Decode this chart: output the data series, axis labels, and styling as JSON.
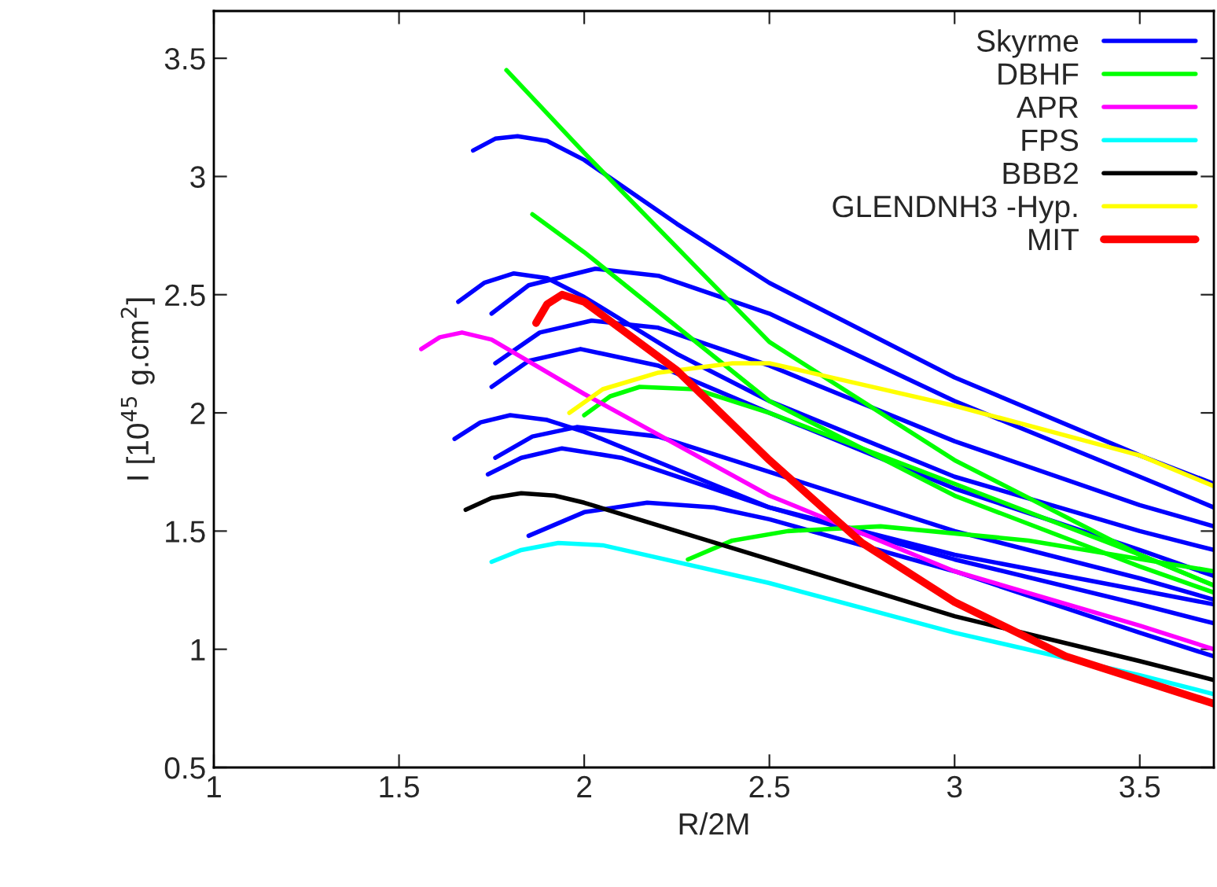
{
  "chart_data": {
    "type": "line",
    "xlabel": "R/2M",
    "ylabel": "I [10$^{45}$ g.cm$^{2}$]",
    "xlim": [
      1,
      3.7
    ],
    "xticks": [
      1,
      1.5,
      2,
      2.5,
      3,
      3.5
    ],
    "ylim": [
      0.5,
      3.7
    ],
    "yticks": [
      0.5,
      1,
      1.5,
      2,
      2.5,
      3,
      3.5
    ],
    "grid": false,
    "legend": "top right",
    "marker": "none",
    "line_style": "solid",
    "series": [
      {
        "name": "Skyrme",
        "color": "#0000ff",
        "x": [
          1.7,
          1.76,
          1.82,
          1.9,
          2.0,
          2.25,
          2.5,
          3.0,
          3.5,
          3.7
        ],
        "values": [
          3.11,
          3.16,
          3.17,
          3.15,
          3.07,
          2.8,
          2.55,
          2.15,
          1.82,
          1.7
        ]
      },
      {
        "color": "#0000ff",
        "x": [
          1.75,
          1.85,
          2.03,
          2.2,
          2.5,
          3.0,
          3.5,
          3.7
        ],
        "values": [
          2.42,
          2.54,
          2.61,
          2.58,
          2.42,
          2.05,
          1.73,
          1.6
        ]
      },
      {
        "color": "#0000ff",
        "x": [
          1.66,
          1.73,
          1.81,
          1.9,
          2.0,
          2.25,
          2.5,
          3.0,
          3.5,
          3.7
        ],
        "values": [
          2.47,
          2.55,
          2.59,
          2.57,
          2.49,
          2.25,
          2.05,
          1.73,
          1.5,
          1.42
        ]
      },
      {
        "color": "#0000ff",
        "x": [
          1.76,
          1.88,
          2.02,
          2.2,
          2.5,
          3.0,
          3.5,
          3.7
        ],
        "values": [
          2.21,
          2.34,
          2.39,
          2.36,
          2.2,
          1.88,
          1.61,
          1.52
        ]
      },
      {
        "color": "#0000ff",
        "x": [
          1.75,
          1.85,
          1.99,
          2.2,
          2.5,
          3.0,
          3.5,
          3.7
        ],
        "values": [
          2.11,
          2.22,
          2.27,
          2.2,
          2.0,
          1.68,
          1.42,
          1.31
        ]
      },
      {
        "color": "#0000ff",
        "x": [
          1.65,
          1.72,
          1.8,
          1.9,
          2.0,
          2.25,
          2.5,
          3.0,
          3.5,
          3.7
        ],
        "values": [
          1.89,
          1.96,
          1.99,
          1.97,
          1.92,
          1.76,
          1.6,
          1.4,
          1.25,
          1.19
        ]
      },
      {
        "color": "#0000ff",
        "x": [
          1.76,
          1.86,
          1.98,
          2.2,
          2.5,
          3.0,
          3.5,
          3.7
        ],
        "values": [
          1.81,
          1.9,
          1.94,
          1.9,
          1.75,
          1.5,
          1.3,
          1.21
        ]
      },
      {
        "color": "#0000ff",
        "x": [
          1.74,
          1.83,
          1.94,
          2.1,
          2.5,
          3.0,
          3.5,
          3.7
        ],
        "values": [
          1.74,
          1.81,
          1.85,
          1.81,
          1.6,
          1.38,
          1.19,
          1.11
        ]
      },
      {
        "color": "#0000ff",
        "x": [
          1.85,
          2.0,
          2.17,
          2.35,
          2.5,
          3.0,
          3.5,
          3.7
        ],
        "values": [
          1.48,
          1.58,
          1.62,
          1.6,
          1.55,
          1.33,
          1.07,
          0.97
        ]
      },
      {
        "name": "DBHF",
        "color": "#00ff00",
        "x": [
          1.79,
          2.0,
          2.5,
          3.0,
          3.5,
          3.7
        ],
        "values": [
          3.45,
          3.1,
          2.3,
          1.8,
          1.4,
          1.27
        ]
      },
      {
        "color": "#00ff00",
        "x": [
          1.86,
          2.0,
          2.5,
          3.0,
          3.5,
          3.7
        ],
        "values": [
          2.84,
          2.68,
          2.05,
          1.65,
          1.35,
          1.24
        ]
      },
      {
        "color": "#00ff00",
        "x": [
          2.0,
          2.07,
          2.15,
          2.3,
          2.5,
          3.0,
          3.5,
          3.7
        ],
        "values": [
          1.99,
          2.07,
          2.11,
          2.1,
          2.0,
          1.7,
          1.4,
          1.27
        ]
      },
      {
        "color": "#00ff00",
        "x": [
          2.28,
          2.4,
          2.55,
          2.8,
          3.2,
          3.7
        ],
        "values": [
          1.38,
          1.46,
          1.5,
          1.52,
          1.46,
          1.33
        ]
      },
      {
        "name": "APR",
        "color": "#ff00ff",
        "x": [
          1.56,
          1.61,
          1.67,
          1.75,
          2.0,
          2.5,
          3.0,
          3.5,
          3.7
        ],
        "values": [
          2.27,
          2.32,
          2.34,
          2.31,
          2.08,
          1.65,
          1.33,
          1.1,
          1.0
        ]
      },
      {
        "name": "FPS",
        "color": "#00ffff",
        "x": [
          1.75,
          1.83,
          1.93,
          2.05,
          2.5,
          3.0,
          3.5,
          3.7
        ],
        "values": [
          1.37,
          1.42,
          1.45,
          1.44,
          1.28,
          1.07,
          0.89,
          0.81
        ]
      },
      {
        "name": "BBB2",
        "color": "#000000",
        "x": [
          1.68,
          1.75,
          1.83,
          1.92,
          2.0,
          2.5,
          3.0,
          3.5,
          3.7
        ],
        "values": [
          1.59,
          1.64,
          1.66,
          1.65,
          1.62,
          1.38,
          1.14,
          0.95,
          0.87
        ]
      },
      {
        "name": "GLENDNH3 -Hyp.",
        "color": "#ffff00",
        "x": [
          1.96,
          2.05,
          2.2,
          2.4,
          2.5,
          3.0,
          3.5,
          3.7
        ],
        "values": [
          2.0,
          2.1,
          2.17,
          2.21,
          2.21,
          2.03,
          1.82,
          1.69
        ]
      },
      {
        "name": "MIT",
        "color": "#ff0000",
        "x": [
          1.87,
          1.9,
          1.94,
          2.0,
          2.25,
          2.5,
          2.75,
          3.0,
          3.3,
          3.7
        ],
        "values": [
          2.38,
          2.46,
          2.5,
          2.47,
          2.18,
          1.8,
          1.45,
          1.2,
          0.97,
          0.77
        ]
      }
    ]
  }
}
